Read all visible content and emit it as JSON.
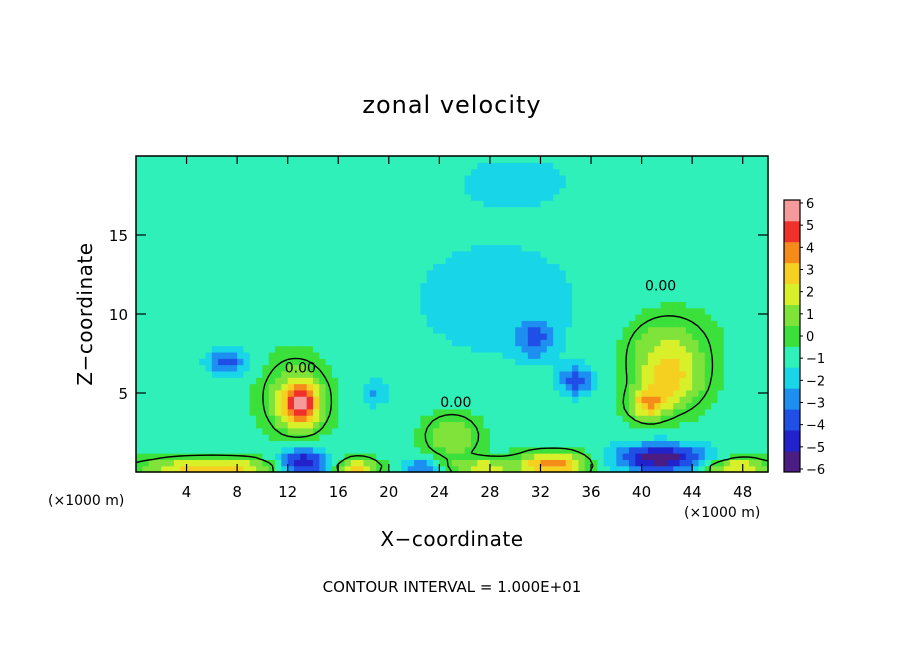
{
  "chart_data": {
    "type": "heatmap",
    "title": "zonal velocity",
    "xlabel": "X−coordinate",
    "ylabel": "Z−coordinate",
    "x_unit_left": "(×1000 m)",
    "x_unit_right": "(×1000 m)",
    "xlim": [
      0,
      50
    ],
    "ylim": [
      0,
      20
    ],
    "x_ticks": [
      4,
      8,
      12,
      16,
      20,
      24,
      28,
      32,
      36,
      40,
      44,
      48
    ],
    "x_tick_labels": [
      "4",
      "8",
      "12",
      "16",
      "20",
      "24",
      "28",
      "32",
      "36",
      "40",
      "44",
      "48"
    ],
    "y_ticks": [
      5,
      10,
      15
    ],
    "y_tick_labels": [
      "5",
      "10",
      "15"
    ],
    "colorbar": {
      "min": -6,
      "max": 6,
      "tick_labels": [
        "6",
        "5",
        "4",
        "3",
        "2",
        "1",
        "0",
        "−1",
        "−2",
        "−3",
        "−4",
        "−5",
        "−6"
      ],
      "colors": [
        "#4b1d82",
        "#2222cc",
        "#1f4fe6",
        "#1c8ff0",
        "#18d6e8",
        "#2ef0b8",
        "#3be03b",
        "#7fe33a",
        "#d8f02a",
        "#f5d020",
        "#f58c1a",
        "#f0302a",
        "#f59a9a"
      ]
    },
    "contour_labels": [
      {
        "text": "0.00",
        "x": 13.0,
        "y": 6.3
      },
      {
        "text": "0.00",
        "x": 25.3,
        "y": 4.1
      },
      {
        "text": "0.00",
        "x": 41.5,
        "y": 11.5
      }
    ],
    "features": [
      {
        "x": 13.0,
        "y": 4.3,
        "v": 5.0,
        "sx": 1.4,
        "sy": 1.3
      },
      {
        "x": 12.6,
        "y": 4.8,
        "v": 2.0,
        "sx": 2.4,
        "sy": 2.3
      },
      {
        "x": 7.2,
        "y": 7.0,
        "v": -3.2,
        "sx": 1.6,
        "sy": 0.8
      },
      {
        "x": 18.8,
        "y": 5.0,
        "v": -2.0,
        "sx": 1.0,
        "sy": 0.8
      },
      {
        "x": 31.6,
        "y": 8.4,
        "v": -2.4,
        "sx": 1.5,
        "sy": 1.2
      },
      {
        "x": 34.8,
        "y": 5.8,
        "v": -3.4,
        "sx": 1.3,
        "sy": 0.9
      },
      {
        "x": 42.2,
        "y": 5.8,
        "v": 3.0,
        "sx": 2.5,
        "sy": 1.8
      },
      {
        "x": 40.5,
        "y": 4.3,
        "v": 3.5,
        "sx": 1.4,
        "sy": 0.9
      },
      {
        "x": 42.0,
        "y": 8.0,
        "v": 1.8,
        "sx": 3.2,
        "sy": 2.0
      },
      {
        "x": 30.0,
        "y": 18.5,
        "v": -1.0,
        "sx": 6.0,
        "sy": 2.0
      },
      {
        "x": 28.5,
        "y": 11.0,
        "v": -1.2,
        "sx": 8.0,
        "sy": 4.5
      },
      {
        "x": 25.0,
        "y": 2.3,
        "v": 2.2,
        "sx": 2.0,
        "sy": 1.3
      },
      {
        "x": 6.0,
        "y": 0.25,
        "v": 4.5,
        "sx": 5.0,
        "sy": 0.55
      },
      {
        "x": 13.2,
        "y": 0.6,
        "v": -5.0,
        "sx": 1.9,
        "sy": 0.9
      },
      {
        "x": 17.5,
        "y": 0.3,
        "v": 4.0,
        "sx": 1.5,
        "sy": 0.5
      },
      {
        "x": 22.5,
        "y": 0.3,
        "v": -3.0,
        "sx": 1.4,
        "sy": 0.5
      },
      {
        "x": 27.5,
        "y": 0.3,
        "v": 3.0,
        "sx": 2.4,
        "sy": 0.5
      },
      {
        "x": 33.0,
        "y": 0.5,
        "v": 5.0,
        "sx": 2.6,
        "sy": 0.7
      },
      {
        "x": 41.5,
        "y": 0.9,
        "v": -5.3,
        "sx": 3.6,
        "sy": 0.9
      },
      {
        "x": 47.5,
        "y": 0.3,
        "v": 3.8,
        "sx": 2.5,
        "sy": 0.5
      }
    ],
    "background": -0.7,
    "contour_level": 0.0
  },
  "footer": "CONTOUR INTERVAL = 1.000E+01"
}
